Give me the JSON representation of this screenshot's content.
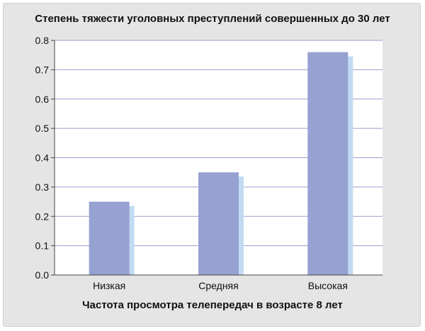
{
  "chart_data": {
    "type": "bar",
    "title": "Степень тяжести уголовных преступлений совершенных до 30 лет",
    "xlabel": "Частота просмотра телепередач в возрасте 8 лет",
    "ylabel": "",
    "categories": [
      "Низкая",
      "Средняя",
      "Высокая"
    ],
    "values": [
      0.25,
      0.35,
      0.76
    ],
    "ylim": [
      0,
      0.8
    ],
    "yticks": [
      "0.0",
      "0.1",
      "0.2",
      "0.3",
      "0.4",
      "0.5",
      "0.6",
      "0.7",
      "0.8"
    ],
    "grid": true,
    "colors": {
      "bar": "#97a1d2",
      "bar_shadow": "#c2dbf3",
      "grid": "#9aa0cf",
      "plot_bg": "#ffffff",
      "frame_bg": "#e5e5e5"
    }
  }
}
